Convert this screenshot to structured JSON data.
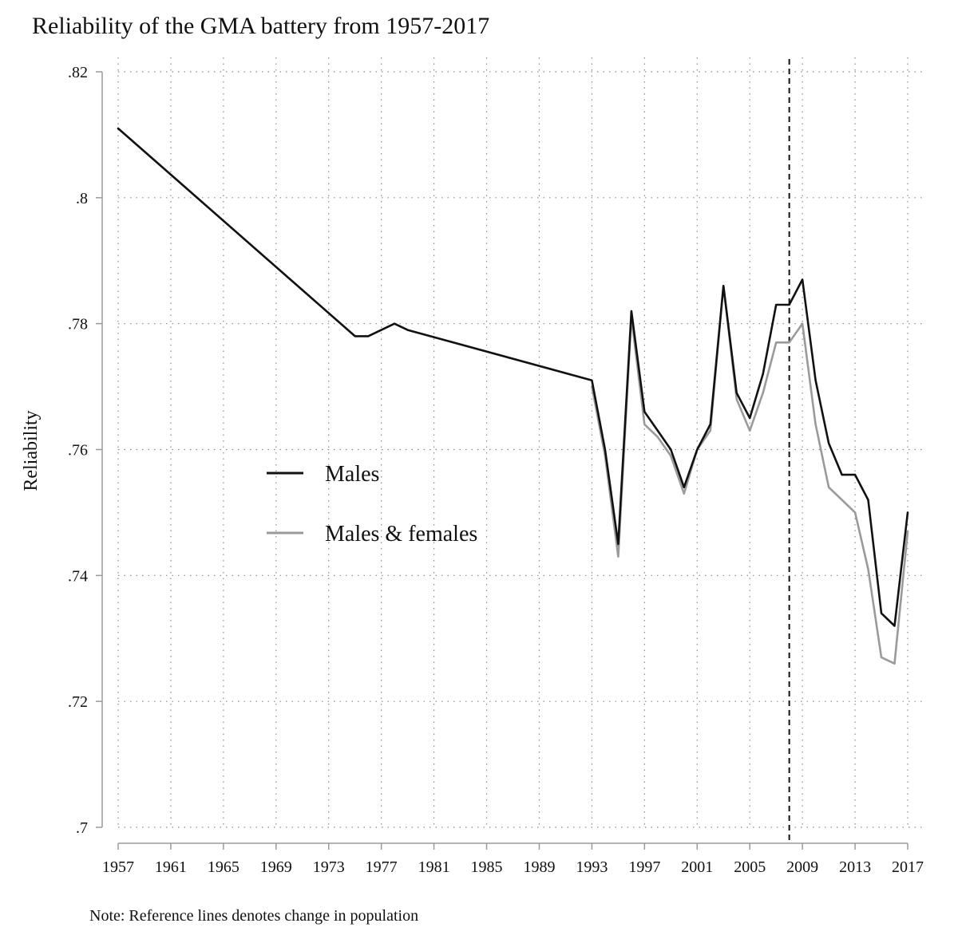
{
  "chart_data": {
    "type": "line",
    "title": "Reliability of the GMA battery from 1957-2017",
    "xlabel": "",
    "ylabel": "Reliability",
    "note": "Note: Reference lines denotes change in population",
    "xlim": [
      1957,
      2017
    ],
    "ylim": [
      0.7,
      0.82
    ],
    "x_ticks": [
      "1957",
      "1961",
      "1965",
      "1969",
      "1973",
      "1977",
      "1981",
      "1985",
      "1989",
      "1993",
      "1997",
      "2001",
      "2005",
      "2009",
      "2013",
      "2017"
    ],
    "x_tick_values": [
      1957,
      1961,
      1965,
      1969,
      1973,
      1977,
      1981,
      1985,
      1989,
      1993,
      1997,
      2001,
      2005,
      2009,
      2013,
      2017
    ],
    "y_ticks": [
      ".7",
      ".72",
      ".74",
      ".76",
      ".78",
      ".8",
      ".82"
    ],
    "y_tick_values": [
      0.7,
      0.72,
      0.74,
      0.76,
      0.78,
      0.8,
      0.82
    ],
    "grid": true,
    "reference_lines": [
      {
        "axis": "x",
        "value": 2008,
        "style": "dashed"
      }
    ],
    "legend": {
      "position": "center-left",
      "entries": [
        "Males",
        "Males & females"
      ]
    },
    "series": [
      {
        "name": "Males",
        "color": "#111111",
        "x": [
          1957,
          1975,
          1976,
          1978,
          1979,
          1993,
          1994,
          1995,
          1996,
          1997,
          1998,
          1999,
          2000,
          2001,
          2002,
          2003,
          2004,
          2005,
          2006,
          2007,
          2008,
          2009,
          2010,
          2011,
          2012,
          2013,
          2014,
          2015,
          2016,
          2017
        ],
        "values": [
          0.811,
          0.778,
          0.778,
          0.78,
          0.779,
          0.771,
          0.76,
          0.745,
          0.782,
          0.766,
          0.763,
          0.76,
          0.754,
          0.76,
          0.764,
          0.786,
          0.769,
          0.765,
          0.772,
          0.783,
          0.783,
          0.787,
          0.771,
          0.761,
          0.756,
          0.756,
          0.752,
          0.734,
          0.732,
          0.75
        ]
      },
      {
        "name": "Males & females",
        "color": "#9a9a9a",
        "x": [
          1993,
          1994,
          1995,
          1996,
          1997,
          1998,
          1999,
          2000,
          2001,
          2002,
          2003,
          2004,
          2005,
          2006,
          2007,
          2008,
          2009,
          2010,
          2011,
          2012,
          2013,
          2014,
          2015,
          2016,
          2017
        ],
        "values": [
          0.77,
          0.759,
          0.743,
          0.781,
          0.764,
          0.762,
          0.759,
          0.753,
          0.76,
          0.763,
          0.786,
          0.768,
          0.763,
          0.769,
          0.777,
          0.777,
          0.78,
          0.764,
          0.754,
          0.752,
          0.75,
          0.741,
          0.727,
          0.726,
          0.747
        ]
      }
    ]
  }
}
